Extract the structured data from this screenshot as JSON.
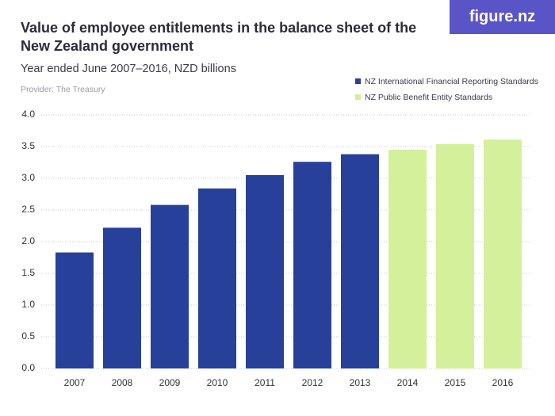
{
  "logo": "figure.nz",
  "chart_data": {
    "type": "bar",
    "title": "Value of employee entitlements in the balance sheet of the New Zealand government",
    "subtitle": "Year ended June 2007–2016, NZD billions",
    "provider": "Provider: The Treasury",
    "categories": [
      "2007",
      "2008",
      "2009",
      "2010",
      "2011",
      "2012",
      "2013",
      "2014",
      "2015",
      "2016"
    ],
    "series": [
      {
        "name": "NZ International Financial Reporting Standards",
        "color": "#27409a",
        "values": [
          1.83,
          2.22,
          2.58,
          2.84,
          3.05,
          3.26,
          3.38,
          null,
          null,
          null
        ]
      },
      {
        "name": "NZ Public Benefit Entity Standards",
        "color": "#d4f09a",
        "values": [
          null,
          null,
          null,
          null,
          null,
          null,
          null,
          3.45,
          3.54,
          3.61
        ]
      }
    ],
    "ylim": [
      0,
      4
    ],
    "yticks": [
      {
        "value": 0,
        "label": "0.0"
      },
      0.5,
      {
        "value": 1,
        "label": "1.0"
      },
      1.5,
      {
        "value": 2,
        "label": "2.0"
      },
      2.5,
      {
        "value": 3,
        "label": "3.0"
      },
      3.5,
      {
        "value": 4,
        "label": "4.0"
      }
    ],
    "grid": true,
    "legend": "top-right"
  }
}
